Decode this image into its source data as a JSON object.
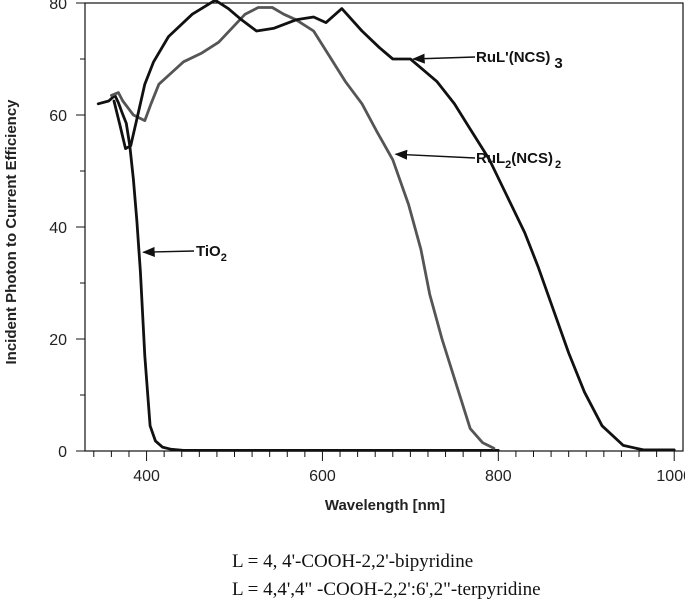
{
  "chart_data": {
    "type": "line",
    "title": "",
    "xlabel": "Wavelength [nm]",
    "ylabel": "Incident Photon to Current Efficiency",
    "xlim": [
      330,
      1010
    ],
    "ylim": [
      0,
      80
    ],
    "xticks": [
      400,
      600,
      800,
      1000
    ],
    "yticks": [
      0,
      20,
      40,
      60,
      80
    ],
    "grid": false,
    "series": [
      {
        "name": "TiO2",
        "color": "#111111",
        "x": [
          345,
          357,
          364,
          368,
          372,
          377,
          381,
          385,
          389,
          393,
          398,
          404,
          410,
          418,
          428,
          442,
          470,
          550,
          700,
          800
        ],
        "y": [
          62,
          62.5,
          63.5,
          62.2,
          60.5,
          58.5,
          54.5,
          48.5,
          41,
          32,
          17,
          4.5,
          1.8,
          0.7,
          0.3,
          0.1,
          0.1,
          0.1,
          0.1,
          0.1
        ]
      },
      {
        "name": "RuL2(NCS)2",
        "color": "#555555",
        "x": [
          360,
          368,
          373,
          385,
          398,
          405,
          414,
          428,
          442,
          462,
          482,
          500,
          512,
          527,
          543,
          556,
          570,
          590,
          606,
          626,
          645,
          662,
          680,
          698,
          712,
          722,
          736,
          752,
          768,
          782,
          795
        ],
        "y": [
          63.5,
          64,
          62.5,
          60,
          59,
          62,
          65.5,
          67.5,
          69.5,
          71,
          73,
          76,
          78,
          79.2,
          79.2,
          78,
          77,
          75,
          71,
          66,
          62,
          57,
          52,
          44,
          36,
          28,
          20,
          12,
          4,
          1.5,
          0.5
        ]
      },
      {
        "name": "RuL'(NCS)3",
        "color": "#111111",
        "x": [
          363,
          370,
          376,
          382,
          390,
          398,
          408,
          425,
          452,
          478,
          493,
          508,
          525,
          545,
          570,
          590,
          604,
          622,
          645,
          665,
          680,
          700,
          715,
          730,
          750,
          770,
          790,
          810,
          830,
          845,
          862,
          880,
          898,
          918,
          942,
          965,
          1000
        ],
        "y": [
          62.5,
          58,
          54,
          54.5,
          60,
          65.5,
          69.5,
          74,
          78,
          80.5,
          79,
          77,
          75,
          75.5,
          77,
          77.5,
          76.5,
          79,
          75,
          72,
          70,
          70,
          68,
          66,
          62,
          57,
          52,
          45.5,
          39,
          33,
          25.5,
          17.5,
          10.5,
          4.5,
          1,
          0.2,
          0.2
        ]
      }
    ],
    "annotations": [
      {
        "base": "RuL'(NCS)",
        "sub": "3",
        "sub_style": "below",
        "target_x": 700,
        "target_y": 70
      },
      {
        "base": "RuL",
        "sub1": "2",
        "mid": "(NCS)",
        "sub": "2",
        "target_x": 680,
        "target_y": 53
      },
      {
        "base": "TiO",
        "sub": "2",
        "target_x": 393,
        "target_y": 35.5
      }
    ]
  },
  "captions": [
    "L = 4, 4'-COOH-2,2'-bipyridine",
    "L = 4,4',4\" -COOH-2,2':6',2\"-terpyridine"
  ]
}
